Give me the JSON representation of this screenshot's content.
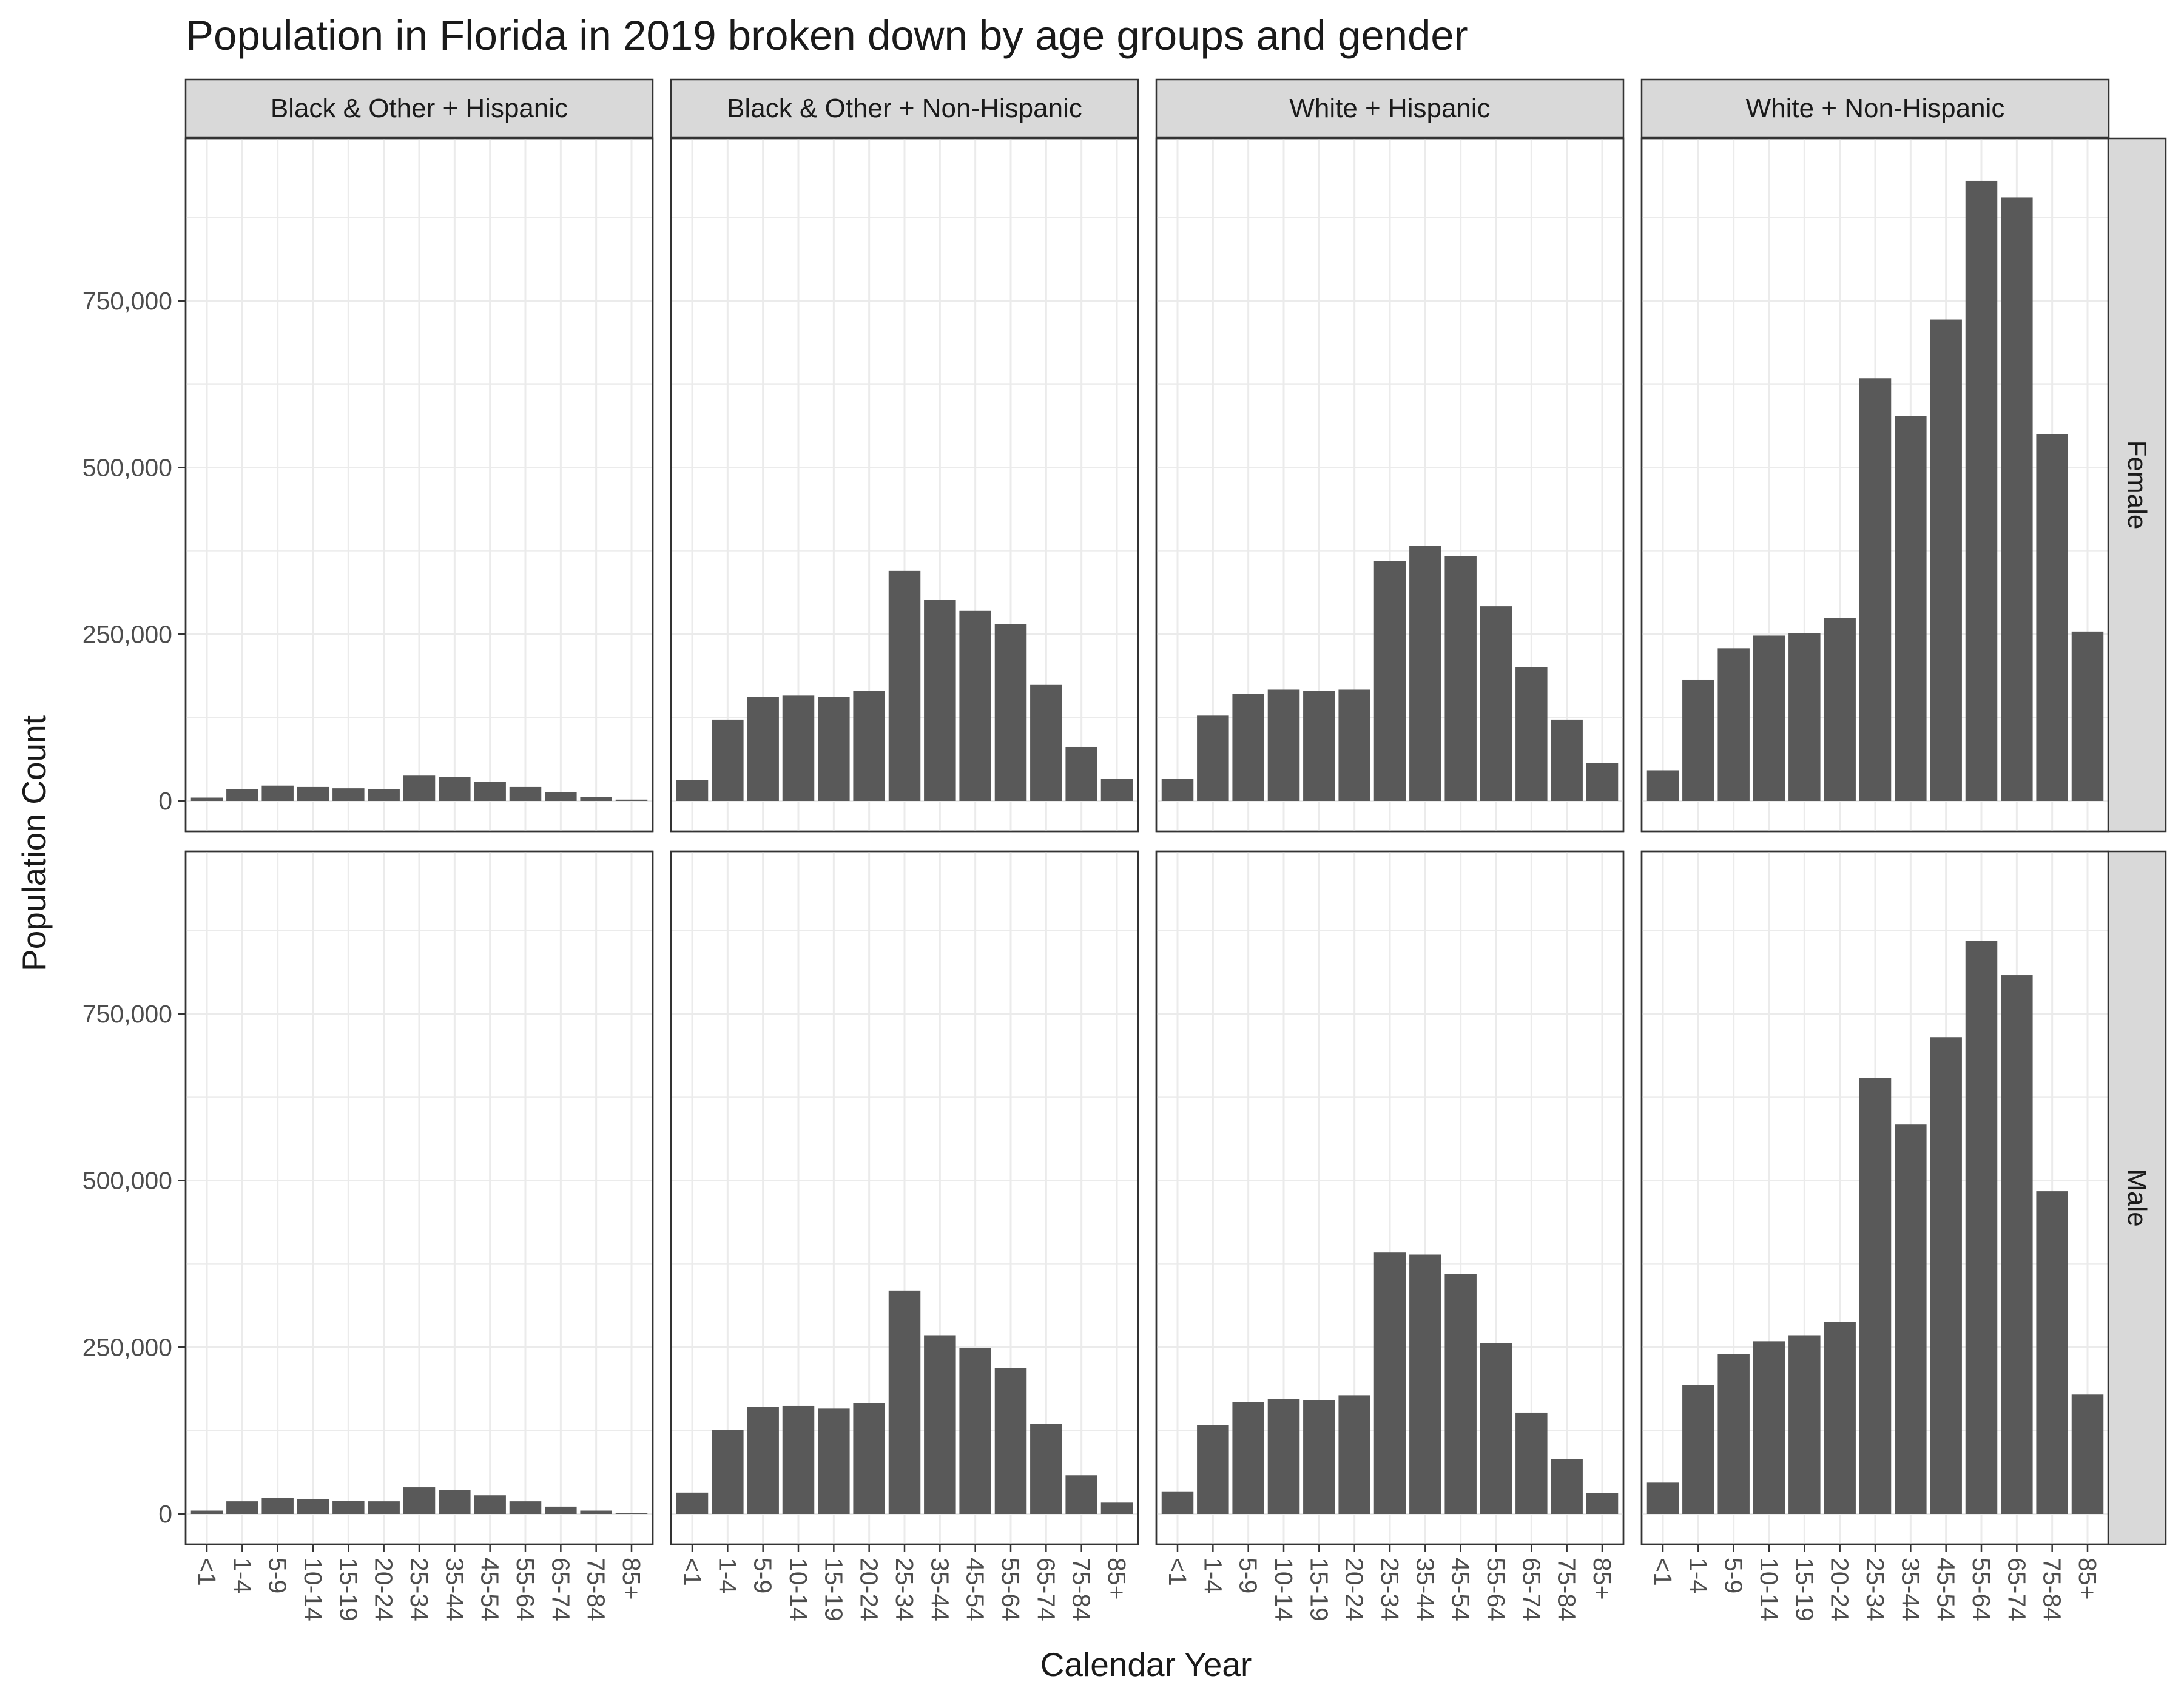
{
  "chart_data": {
    "type": "bar",
    "title": "Population in Florida in 2019 broken down by age groups and gender",
    "xlabel": "Calendar Year",
    "ylabel": "Population Count",
    "ylim": [
      0,
      970000
    ],
    "y_ticks": [
      0,
      250000,
      500000,
      750000
    ],
    "y_tick_labels": [
      "0",
      "250,000",
      "500,000",
      "750,000"
    ],
    "grid": true,
    "categories": [
      "<1",
      "1-4",
      "5-9",
      "10-14",
      "15-19",
      "20-24",
      "25-34",
      "35-44",
      "45-54",
      "55-64",
      "65-74",
      "75-84",
      "85+"
    ],
    "facet_columns": [
      "Black & Other + Hispanic",
      "Black & Other + Non-Hispanic",
      "White + Hispanic",
      "White + Non-Hispanic"
    ],
    "facet_rows": [
      "Female",
      "Male"
    ],
    "panels": [
      {
        "row": "Female",
        "column": "Black & Other + Hispanic",
        "values": [
          5000,
          18000,
          23000,
          21000,
          19000,
          18000,
          38000,
          36000,
          29000,
          21000,
          13000,
          6000,
          2000
        ]
      },
      {
        "row": "Female",
        "column": "Black & Other + Non-Hispanic",
        "values": [
          31000,
          122000,
          156000,
          158000,
          156000,
          165000,
          345000,
          302000,
          285000,
          265000,
          174000,
          81000,
          33000
        ]
      },
      {
        "row": "Female",
        "column": "White + Hispanic",
        "values": [
          33000,
          128000,
          161000,
          167000,
          165000,
          167000,
          360000,
          383000,
          367000,
          292000,
          201000,
          122000,
          57000
        ]
      },
      {
        "row": "Female",
        "column": "White + Non-Hispanic",
        "values": [
          46000,
          182000,
          229000,
          248000,
          252000,
          274000,
          634000,
          577000,
          722000,
          930000,
          905000,
          550000,
          254000
        ]
      },
      {
        "row": "Male",
        "column": "Black & Other + Hispanic",
        "values": [
          5000,
          19000,
          24000,
          22000,
          20000,
          19000,
          40000,
          36000,
          28000,
          19000,
          11000,
          5000,
          1500
        ]
      },
      {
        "row": "Male",
        "column": "Black & Other + Non-Hispanic",
        "values": [
          32000,
          126000,
          161000,
          162000,
          158000,
          166000,
          335000,
          268000,
          249000,
          219000,
          135000,
          58000,
          17000
        ]
      },
      {
        "row": "Male",
        "column": "White + Hispanic",
        "values": [
          33000,
          133000,
          168000,
          172000,
          171000,
          178000,
          392000,
          389000,
          360000,
          256000,
          152000,
          82000,
          31000
        ]
      },
      {
        "row": "Male",
        "column": "White + Non-Hispanic",
        "values": [
          47000,
          193000,
          240000,
          259000,
          268000,
          288000,
          654000,
          584000,
          715000,
          859000,
          808000,
          484000,
          179000
        ]
      }
    ]
  }
}
